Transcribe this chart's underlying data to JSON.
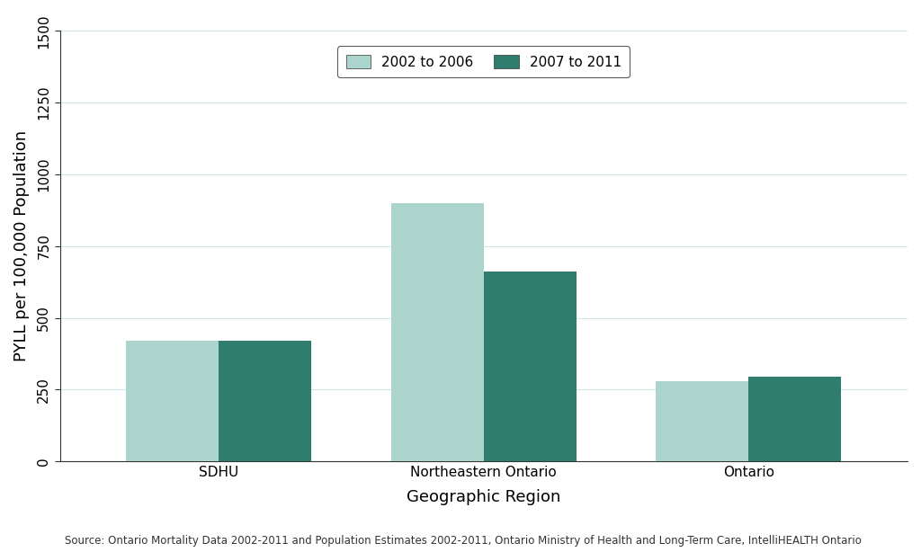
{
  "categories": [
    "SDHU",
    "Northeastern Ontario",
    "Ontario"
  ],
  "series": [
    {
      "label": "2002 to 2006",
      "values": [
        420,
        900,
        280
      ],
      "color": "#aad4cc"
    },
    {
      "label": "2007 to 2011",
      "values": [
        420,
        660,
        295
      ],
      "color": "#2e7d6e"
    }
  ],
  "ylabel": "PYLL per 100,000 Population",
  "xlabel": "Geographic Region",
  "ylim": [
    0,
    1500
  ],
  "yticks": [
    0,
    250,
    500,
    750,
    1000,
    1250,
    1500
  ],
  "footnote": "Source: Ontario Mortality Data 2002-2011 and Population Estimates 2002-2011, Ontario Ministry of Health and Long-Term Care, IntelliHEALTH Ontario",
  "background_color": "#ffffff",
  "grid_color": "#d0e8e4",
  "bar_width": 0.35,
  "axis_label_fontsize": 13,
  "tick_fontsize": 11,
  "legend_fontsize": 11,
  "footnote_fontsize": 8.5
}
